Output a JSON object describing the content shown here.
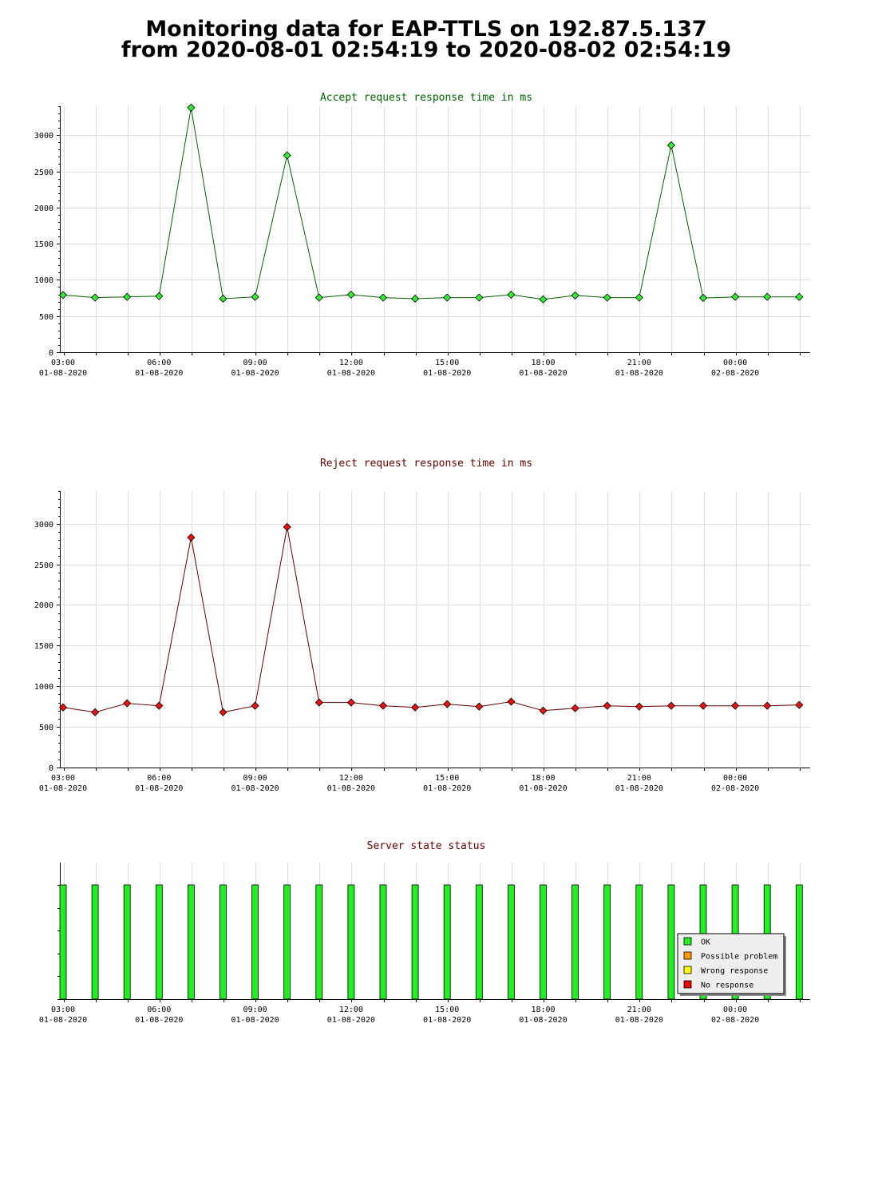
{
  "title": {
    "line1": "Monitoring data for EAP-TTLS on 192.87.5.137",
    "line2": "from 2020-08-01 02:54:19 to 2020-08-02 02:54:19"
  },
  "x_ticks": [
    {
      "time": "03:00",
      "date": "01-08-2020",
      "h": 3
    },
    {
      "time": "06:00",
      "date": "01-08-2020",
      "h": 6
    },
    {
      "time": "09:00",
      "date": "01-08-2020",
      "h": 9
    },
    {
      "time": "12:00",
      "date": "01-08-2020",
      "h": 12
    },
    {
      "time": "15:00",
      "date": "01-08-2020",
      "h": 15
    },
    {
      "time": "18:00",
      "date": "01-08-2020",
      "h": 18
    },
    {
      "time": "21:00",
      "date": "01-08-2020",
      "h": 21
    },
    {
      "time": "00:00",
      "date": "02-08-2020",
      "h": 24
    }
  ],
  "chart_data": [
    {
      "type": "line",
      "title": "Accept request response time in ms",
      "title_color": "#006400",
      "line_color": "#006400",
      "marker_color": "#33ee33",
      "ylim": [
        0,
        3400
      ],
      "y_ticks": [
        0,
        500,
        1000,
        1500,
        2000,
        2500,
        3000
      ],
      "x": [
        2.9,
        3.9,
        4.9,
        5.9,
        6.9,
        7.9,
        8.9,
        9.9,
        10.9,
        11.9,
        12.9,
        13.9,
        14.9,
        15.9,
        16.9,
        17.9,
        18.9,
        19.9,
        20.9,
        21.9,
        22.9,
        23.9,
        24.9,
        25.9
      ],
      "values": [
        790,
        755,
        765,
        775,
        3380,
        740,
        765,
        2720,
        755,
        795,
        755,
        740,
        755,
        755,
        795,
        730,
        785,
        755,
        755,
        2860,
        750,
        765,
        765,
        765
      ]
    },
    {
      "type": "line",
      "title": "Reject request response time in ms",
      "title_color": "#660000",
      "line_color": "#660000",
      "marker_color": "#ee1111",
      "ylim": [
        0,
        3400
      ],
      "y_ticks": [
        0,
        500,
        1000,
        1500,
        2000,
        2500,
        3000
      ],
      "x": [
        2.9,
        3.9,
        4.9,
        5.9,
        6.9,
        7.9,
        8.9,
        9.9,
        10.9,
        11.9,
        12.9,
        13.9,
        14.9,
        15.9,
        16.9,
        17.9,
        18.9,
        19.9,
        20.9,
        21.9,
        22.9,
        23.9,
        24.9,
        25.9
      ],
      "values": [
        740,
        680,
        790,
        760,
        2830,
        680,
        760,
        2960,
        800,
        800,
        760,
        740,
        780,
        750,
        810,
        700,
        730,
        760,
        750,
        760,
        760,
        760,
        760,
        770
      ]
    },
    {
      "type": "bar",
      "title": "Server state status",
      "title_color": "#660000",
      "x": [
        2.9,
        3.9,
        4.9,
        5.9,
        6.9,
        7.9,
        8.9,
        9.9,
        10.9,
        11.9,
        12.9,
        13.9,
        14.9,
        15.9,
        16.9,
        17.9,
        18.9,
        19.9,
        20.9,
        21.9,
        22.9,
        23.9,
        24.9,
        25.9
      ],
      "states": [
        "OK",
        "OK",
        "OK",
        "OK",
        "OK",
        "OK",
        "OK",
        "OK",
        "OK",
        "OK",
        "OK",
        "OK",
        "OK",
        "OK",
        "OK",
        "OK",
        "OK",
        "OK",
        "OK",
        "OK",
        "OK",
        "OK",
        "OK",
        "OK"
      ],
      "legend": [
        {
          "label": "OK",
          "color": "#22ee22"
        },
        {
          "label": "Possible problem",
          "color": "#ff9900"
        },
        {
          "label": "Wrong response",
          "color": "#ffff00"
        },
        {
          "label": "No response",
          "color": "#ee0000"
        }
      ],
      "legend_position": "bottom-right"
    }
  ]
}
